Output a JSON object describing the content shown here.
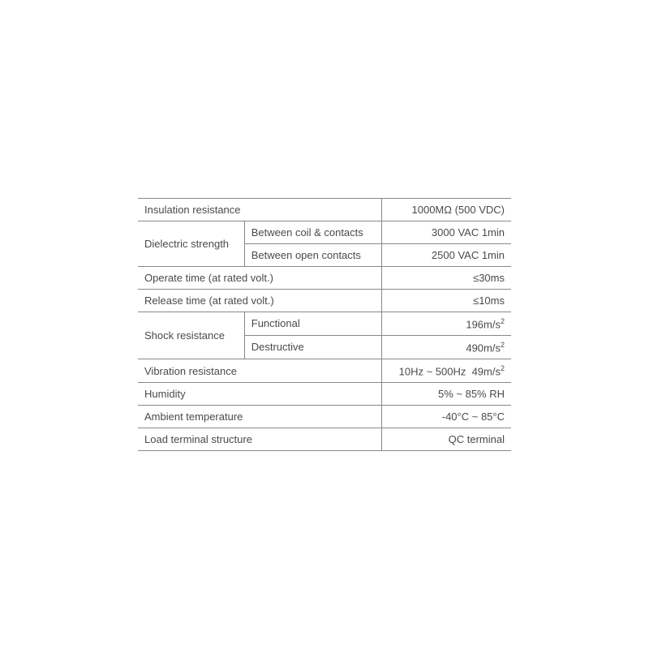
{
  "table": {
    "type": "table",
    "text_color": "#4a4a4a",
    "border_color": "#888888",
    "background_color": "#ffffff",
    "font_size": 13,
    "rows": [
      {
        "label": "Insulation resistance",
        "value": "1000MΩ (500 VDC)"
      },
      {
        "group": "Dielectric strength",
        "subrows": [
          {
            "label": "Between coil & contacts",
            "value": "3000 VAC 1min"
          },
          {
            "label": "Between open contacts",
            "value": "2500 VAC 1min"
          }
        ]
      },
      {
        "label": "Operate time (at rated volt.)",
        "value": "≤30ms"
      },
      {
        "label": "Release time (at rated volt.)",
        "value": "≤10ms"
      },
      {
        "group": "Shock resistance",
        "subrows": [
          {
            "label": "Functional",
            "value_html": "196m/s<sup>2</sup>",
            "value": "196m/s²"
          },
          {
            "label": "Destructive",
            "value_html": "490m/s<sup>2</sup>",
            "value": "490m/s²"
          }
        ]
      },
      {
        "label": "Vibration resistance",
        "value_html": "10Hz ~ 500Hz&nbsp;&nbsp;49m/s<sup>2</sup>",
        "value": "10Hz ~ 500Hz  49m/s²"
      },
      {
        "label": "Humidity",
        "value": "5% ~ 85% RH"
      },
      {
        "label": "Ambient temperature",
        "value": "-40°C ~ 85°C"
      },
      {
        "label": "Load terminal structure",
        "value": "QC terminal"
      }
    ]
  }
}
